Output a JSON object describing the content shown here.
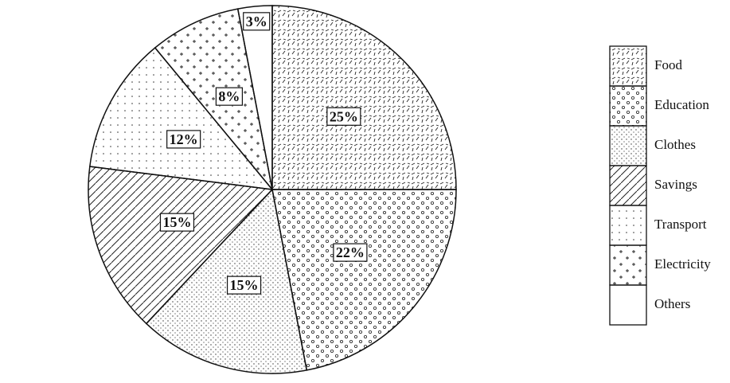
{
  "chart_data": {
    "type": "pie",
    "categories": [
      "Food",
      "Education",
      "Clothes",
      "Savings",
      "Transport",
      "Electricity",
      "Others"
    ],
    "values": [
      25,
      22,
      15,
      15,
      12,
      8,
      3
    ],
    "value_labels": [
      "25%",
      "22%",
      "15%",
      "15%",
      "12%",
      "8%",
      "3%"
    ]
  }
}
